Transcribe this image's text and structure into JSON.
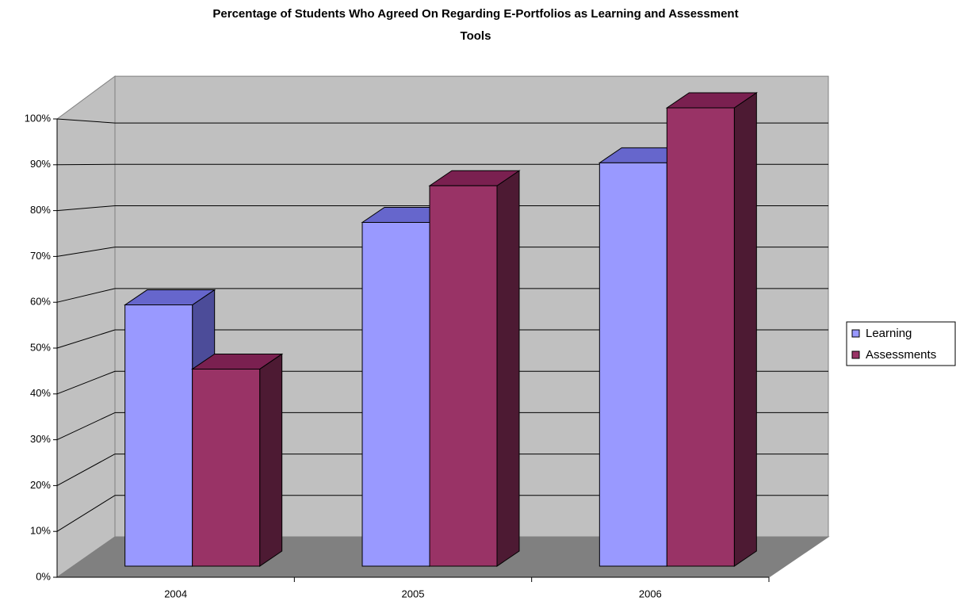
{
  "chart_data": {
    "type": "bar3d",
    "title_lines": [
      "Percentage of Students Who Agreed On Regarding E-Portfolios as Learning and Assessment",
      "Tools"
    ],
    "categories": [
      "2004",
      "2005",
      "2006"
    ],
    "series": [
      {
        "name": "Learning",
        "color": "#9999ff",
        "values": [
          57,
          75,
          88
        ]
      },
      {
        "name": "Assessments",
        "color": "#993366",
        "values": [
          43,
          83,
          100
        ]
      }
    ],
    "ylim": [
      0,
      100
    ],
    "yticks": [
      {
        "value": 0,
        "label": "0%"
      },
      {
        "value": 10,
        "label": "10%"
      },
      {
        "value": 20,
        "label": "20%"
      },
      {
        "value": 30,
        "label": "30%"
      },
      {
        "value": 40,
        "label": "40%"
      },
      {
        "value": 50,
        "label": "50%"
      },
      {
        "value": 60,
        "label": "60%"
      },
      {
        "value": 70,
        "label": "70%"
      },
      {
        "value": 80,
        "label": "80%"
      },
      {
        "value": 90,
        "label": "90%"
      },
      {
        "value": 100,
        "label": "100%"
      }
    ],
    "grid": true,
    "legend": "right"
  }
}
